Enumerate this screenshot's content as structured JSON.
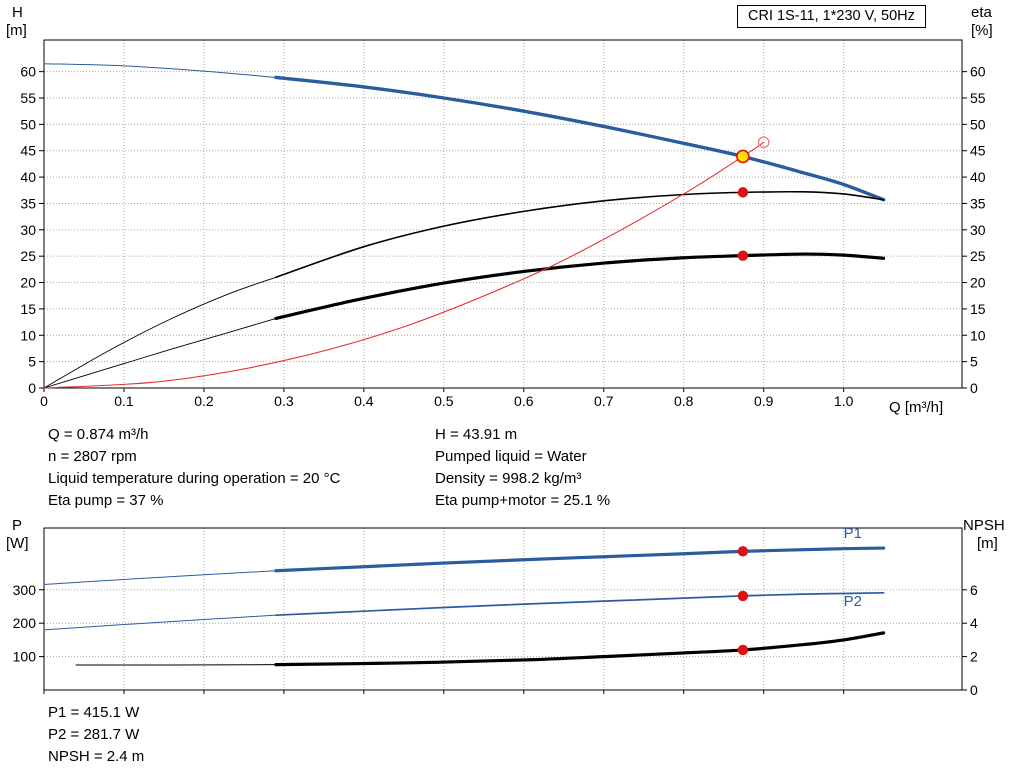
{
  "title_box": "CRI 1S-11, 1*230 V, 50Hz",
  "axis_titles": {
    "h": "H",
    "h_unit": "[m]",
    "eta": "eta",
    "eta_unit": "[%]",
    "q": "Q [m³/h]",
    "p": "P",
    "p_unit": "[W]",
    "npsh": "NPSH",
    "npsh_unit": "[m]"
  },
  "info_top": {
    "left": [
      "Q = 0.874 m³/h",
      "n = 2807 rpm",
      "Liquid temperature during operation = 20 °C",
      "Eta pump = 37 %"
    ],
    "right": [
      "H = 43.91 m",
      "Pumped liquid = Water",
      "Density = 998.2 kg/m³",
      "Eta pump+motor = 25.1 %"
    ]
  },
  "info_bottom": [
    "P1 = 415.1 W",
    "P2 = 281.7 W",
    "NPSH = 2.4 m"
  ],
  "colors": {
    "curve_blue": "#2b5c9e",
    "curve_black": "#000000",
    "curve_red": "#e63232",
    "marker_red": "#e01111",
    "marker_yellow": "#ffe000",
    "marker_open": "#f08080",
    "grid": "#a8a8a8"
  },
  "marker_styles": {
    "red": {
      "r": 5.2,
      "fill": "marker_red",
      "stroke": "none",
      "sw": 0
    },
    "duty": {
      "r": 6.0,
      "fill": "marker_yellow",
      "stroke": "marker_red",
      "sw": 1.6
    },
    "open": {
      "r": 5.2,
      "fill": "none",
      "stroke": "marker_open",
      "sw": 1.4
    }
  },
  "chart_data": [
    {
      "id": "top",
      "type": "line",
      "title": "CRI 1S-11, 1*230 V, 50Hz",
      "xlabel": "Q [m³/h]",
      "ylabel_left": "H [m]",
      "ylabel_right": "eta [%]",
      "axes": {
        "x": {
          "min": 0,
          "max": 1.148,
          "ticks": [
            0,
            0.1,
            0.2,
            0.3,
            0.4,
            0.5,
            0.6,
            0.7,
            0.8,
            0.9,
            1.0
          ],
          "labels": [
            "0",
            "0.1",
            "0.2",
            "0.3",
            "0.4",
            "0.5",
            "0.6",
            "0.7",
            "0.8",
            "0.9",
            "1.0"
          ]
        },
        "left": {
          "min": 0,
          "max": 66,
          "ticks": [
            0,
            5,
            10,
            15,
            20,
            25,
            30,
            35,
            40,
            45,
            50,
            55,
            60
          ],
          "labels": [
            "0",
            "5",
            "10",
            "15",
            "20",
            "25",
            "30",
            "35",
            "40",
            "45",
            "50",
            "55",
            "60"
          ]
        },
        "right": {
          "min": 0,
          "max": 66,
          "ticks": [
            0,
            5,
            10,
            15,
            20,
            25,
            30,
            35,
            40,
            45,
            50,
            55,
            60
          ],
          "labels": [
            "0",
            "5",
            "10",
            "15",
            "20",
            "25",
            "30",
            "35",
            "40",
            "45",
            "50",
            "55",
            "60"
          ]
        }
      },
      "series": [
        {
          "name": "h-curve-extension",
          "color": "curve_blue",
          "width": 1,
          "points": [
            [
              0,
              61.5
            ],
            [
              0.1,
              61.1
            ],
            [
              0.2,
              60.1
            ],
            [
              0.29,
              58.9
            ]
          ]
        },
        {
          "name": "h-curve",
          "color": "curve_blue",
          "width": 3.4,
          "points": [
            [
              0.29,
              58.9
            ],
            [
              0.4,
              57.1
            ],
            [
              0.5,
              55.0
            ],
            [
              0.6,
              52.5
            ],
            [
              0.7,
              49.6
            ],
            [
              0.8,
              46.4
            ],
            [
              0.874,
              43.91
            ],
            [
              0.95,
              40.8
            ],
            [
              1.0,
              38.6
            ],
            [
              1.05,
              35.7
            ]
          ]
        },
        {
          "name": "eta-pump-curve-extension",
          "color": "curve_black",
          "width": 0.9,
          "points": [
            [
              0,
              0
            ],
            [
              0.08,
              7.0
            ],
            [
              0.16,
              13.2
            ],
            [
              0.23,
              17.8
            ],
            [
              0.29,
              21.0
            ]
          ]
        },
        {
          "name": "eta-pump-curve",
          "color": "curve_black",
          "width": 1.6,
          "points": [
            [
              0.29,
              21.0
            ],
            [
              0.4,
              26.8
            ],
            [
              0.5,
              30.7
            ],
            [
              0.6,
              33.5
            ],
            [
              0.7,
              35.5
            ],
            [
              0.8,
              36.7
            ],
            [
              0.874,
              37.1
            ],
            [
              0.95,
              37.2
            ],
            [
              1.0,
              36.8
            ],
            [
              1.05,
              35.7
            ]
          ]
        },
        {
          "name": "eta-pump-motor-curve-extension",
          "color": "curve_black",
          "width": 0.9,
          "points": [
            [
              0,
              0
            ],
            [
              0.08,
              3.7
            ],
            [
              0.16,
              7.4
            ],
            [
              0.23,
              10.5
            ],
            [
              0.29,
              13.2
            ]
          ]
        },
        {
          "name": "eta-pump-motor-curve",
          "color": "curve_black",
          "width": 3.2,
          "points": [
            [
              0.29,
              13.2
            ],
            [
              0.4,
              17.0
            ],
            [
              0.5,
              19.9
            ],
            [
              0.6,
              22.1
            ],
            [
              0.7,
              23.7
            ],
            [
              0.8,
              24.7
            ],
            [
              0.874,
              25.1
            ],
            [
              0.95,
              25.4
            ],
            [
              1.0,
              25.2
            ],
            [
              1.05,
              24.6
            ]
          ]
        },
        {
          "name": "load-curve",
          "color": "curve_red",
          "width": 1.1,
          "points": [
            [
              0,
              0
            ],
            [
              0.15,
              1.3
            ],
            [
              0.3,
              5.2
            ],
            [
              0.45,
              11.6
            ],
            [
              0.6,
              20.7
            ],
            [
              0.7,
              28.2
            ],
            [
              0.8,
              36.8
            ],
            [
              0.874,
              43.91
            ],
            [
              0.9,
              46.6
            ]
          ]
        }
      ],
      "markers": [
        {
          "x": 0.9,
          "y": 46.6,
          "kind": "open",
          "name": "target-point-marker"
        },
        {
          "x": 0.874,
          "y": 37.1,
          "kind": "red",
          "name": "eta-pump-point-marker"
        },
        {
          "x": 0.874,
          "y": 25.1,
          "kind": "red",
          "name": "eta-pump-motor-point-marker"
        },
        {
          "x": 0.874,
          "y": 43.91,
          "kind": "duty",
          "name": "duty-point-marker"
        }
      ],
      "labels": []
    },
    {
      "id": "bottom",
      "type": "line",
      "ylabel_left": "P [W]",
      "ylabel_right": "NPSH [m]",
      "axes": {
        "x": {
          "min": 0,
          "max": 1.148,
          "ticks": [
            0,
            0.1,
            0.2,
            0.3,
            0.4,
            0.5,
            0.6,
            0.7,
            0.8,
            0.9,
            1.0
          ]
        },
        "left": {
          "min": 0,
          "max": 485,
          "ticks": [
            100,
            200,
            300
          ],
          "labels": [
            "100",
            "200",
            "300"
          ]
        },
        "right": {
          "min": 0,
          "max": 9.7,
          "ticks": [
            0,
            2,
            4,
            6
          ],
          "labels": [
            "0",
            "2",
            "4",
            "6"
          ]
        }
      },
      "series": [
        {
          "name": "p1-curve-extension",
          "color": "curve_blue",
          "width": 1,
          "points": [
            [
              0,
              316
            ],
            [
              0.1,
              331
            ],
            [
              0.2,
              345
            ],
            [
              0.29,
              357
            ]
          ]
        },
        {
          "name": "p1-curve",
          "color": "curve_blue",
          "width": 3.2,
          "points": [
            [
              0.29,
              357
            ],
            [
              0.4,
              369
            ],
            [
              0.5,
              380
            ],
            [
              0.6,
              390
            ],
            [
              0.7,
              399
            ],
            [
              0.8,
              408
            ],
            [
              0.874,
              415.1
            ],
            [
              0.95,
              420
            ],
            [
              1.0,
              423
            ],
            [
              1.05,
              425
            ]
          ]
        },
        {
          "name": "p2-curve-extension",
          "color": "curve_blue",
          "width": 1,
          "points": [
            [
              0,
              180
            ],
            [
              0.1,
              196
            ],
            [
              0.2,
              211
            ],
            [
              0.29,
              224
            ]
          ]
        },
        {
          "name": "p2-curve",
          "color": "curve_blue",
          "width": 1.7,
          "points": [
            [
              0.29,
              224
            ],
            [
              0.4,
              236
            ],
            [
              0.5,
              247
            ],
            [
              0.6,
              257
            ],
            [
              0.7,
              266
            ],
            [
              0.8,
              275
            ],
            [
              0.874,
              281.7
            ],
            [
              0.95,
              287
            ],
            [
              1.0,
              289
            ],
            [
              1.05,
              291
            ]
          ]
        },
        {
          "name": "npsh-curve-extension",
          "color": "curve_black",
          "width": 1,
          "axis": "right",
          "points": [
            [
              0.04,
              1.5
            ],
            [
              0.16,
              1.5
            ],
            [
              0.29,
              1.52
            ]
          ]
        },
        {
          "name": "npsh-curve",
          "color": "curve_black",
          "width": 3.2,
          "axis": "right",
          "points": [
            [
              0.29,
              1.52
            ],
            [
              0.45,
              1.62
            ],
            [
              0.6,
              1.8
            ],
            [
              0.7,
              2.0
            ],
            [
              0.8,
              2.22
            ],
            [
              0.874,
              2.4
            ],
            [
              0.95,
              2.72
            ],
            [
              1.0,
              3.0
            ],
            [
              1.05,
              3.42
            ]
          ]
        }
      ],
      "markers": [
        {
          "x": 0.874,
          "y": 415.1,
          "kind": "red",
          "name": "p1-point-marker"
        },
        {
          "x": 0.874,
          "y": 281.7,
          "kind": "red",
          "name": "p2-point-marker"
        },
        {
          "x": 0.874,
          "y": 2.4,
          "axis": "right",
          "kind": "red",
          "name": "npsh-point-marker"
        }
      ],
      "labels": [
        {
          "x": 1.0,
          "y": 455,
          "text": "P1",
          "color": "curve_blue",
          "name": "p1-series-label"
        },
        {
          "x": 1.0,
          "y": 252,
          "text": "P2",
          "color": "curve_blue",
          "name": "p2-series-label"
        }
      ]
    }
  ]
}
